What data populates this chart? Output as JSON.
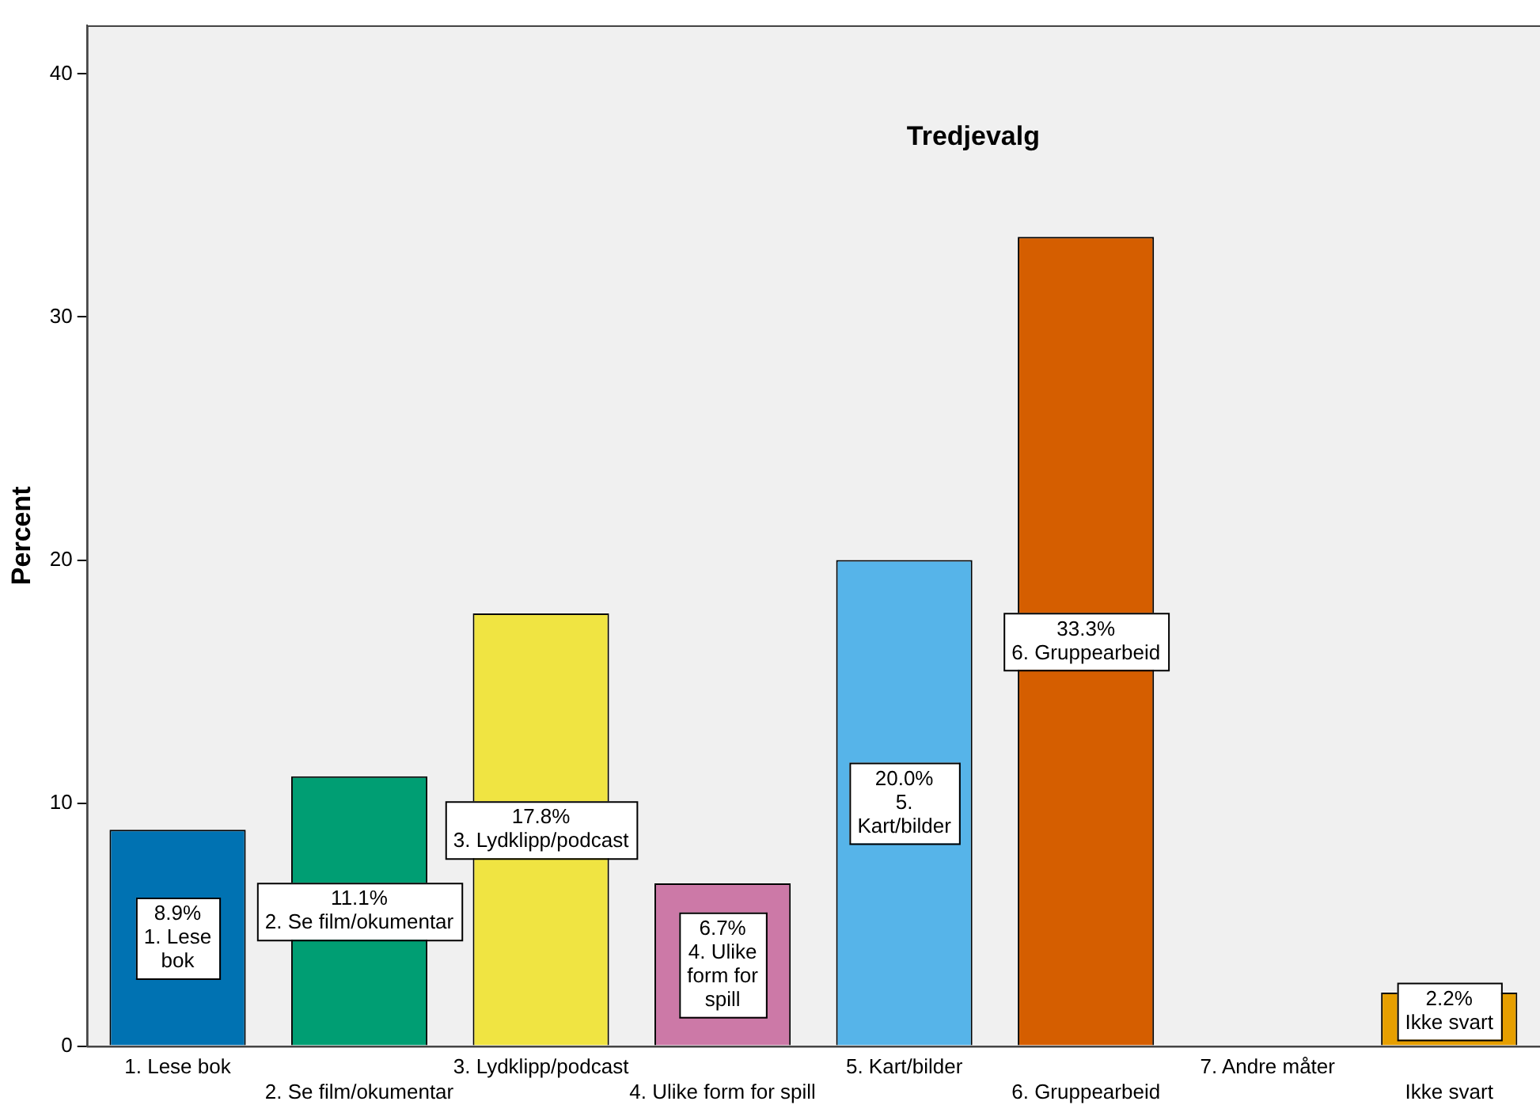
{
  "chart_data": {
    "type": "bar",
    "title": "Tredjevalg",
    "ylabel": "Percent",
    "categories": [
      "1. Lese bok",
      "2. Se film/okumentar",
      "3. Lydklipp/podcast",
      "4. Ulike form for spill",
      "5. Kart/bilder",
      "6. Gruppearbeid",
      "7. Andre måter",
      "Ikke svart"
    ],
    "values": [
      8.9,
      11.1,
      17.8,
      6.7,
      20.0,
      33.3,
      0,
      2.2
    ],
    "colors": [
      "#0072b2",
      "#009e73",
      "#f0e442",
      "#cc79a7",
      "#56b4e9",
      "#d55e00",
      "#999999",
      "#e69f00"
    ],
    "value_labels": [
      "8.9%",
      "11.1%",
      "17.8%",
      "6.7%",
      "20.0%",
      "33.3%",
      null,
      "2.2%"
    ],
    "ylim": [
      0,
      42
    ],
    "yticks": [
      0,
      10,
      20,
      30,
      40
    ],
    "grid": false,
    "legend": false
  }
}
